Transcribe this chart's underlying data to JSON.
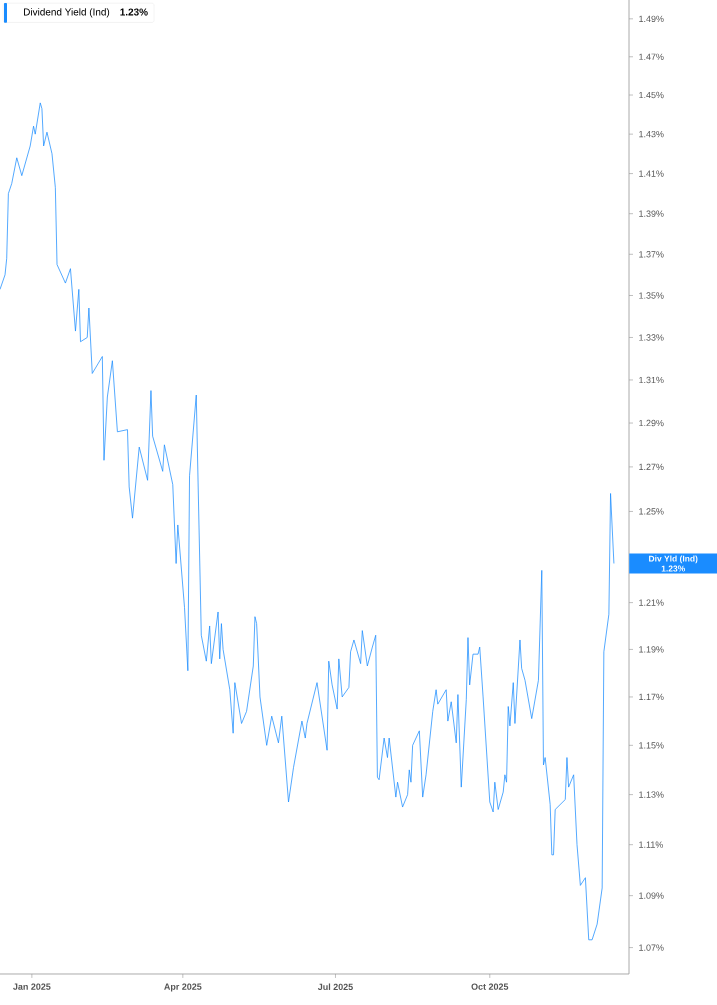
{
  "chart_data": {
    "type": "line",
    "log": "y",
    "legend": "top left",
    "marker": "none",
    "line_style": "solid",
    "xlim": [
      "2024-12-13",
      "2025-12-23"
    ],
    "ylim": [
      1.06,
      1.5
    ],
    "xticks": [
      {
        "value": "2025-01-01",
        "label": "Jan 2025"
      },
      {
        "value": "2025-04-01",
        "label": "Apr 2025"
      },
      {
        "value": "2025-07-01",
        "label": "Jul 2025"
      },
      {
        "value": "2025-10-01",
        "label": "Oct 2025"
      }
    ],
    "yticks": [
      {
        "value": 1.07,
        "label": "1.07%"
      },
      {
        "value": 1.09,
        "label": "1.09%"
      },
      {
        "value": 1.11,
        "label": "1.11%"
      },
      {
        "value": 1.13,
        "label": "1.13%"
      },
      {
        "value": 1.15,
        "label": "1.15%"
      },
      {
        "value": 1.17,
        "label": "1.17%"
      },
      {
        "value": 1.19,
        "label": "1.19%"
      },
      {
        "value": 1.21,
        "label": "1.21%"
      },
      {
        "value": 1.25,
        "label": "1.25%"
      },
      {
        "value": 1.27,
        "label": "1.27%"
      },
      {
        "value": 1.29,
        "label": "1.29%"
      },
      {
        "value": 1.31,
        "label": "1.31%"
      },
      {
        "value": 1.33,
        "label": "1.33%"
      },
      {
        "value": 1.35,
        "label": "1.35%"
      },
      {
        "value": 1.37,
        "label": "1.37%"
      },
      {
        "value": 1.39,
        "label": "1.39%"
      },
      {
        "value": 1.41,
        "label": "1.41%"
      },
      {
        "value": 1.43,
        "label": "1.43%"
      },
      {
        "value": 1.45,
        "label": "1.45%"
      },
      {
        "value": 1.47,
        "label": "1.47%"
      },
      {
        "value": 1.49,
        "label": "1.49%"
      }
    ],
    "annotations": [
      "Div Yld (Ind)",
      "1.23%",
      "1.23%"
    ],
    "series": [
      {
        "name": "Dividend Yield (Ind)",
        "color": "#1a8cff",
        "x": [
          "2024-12-13",
          "2024-12-16",
          "2024-12-17",
          "2024-12-18",
          "2024-12-20",
          "2024-12-23",
          "2024-12-26",
          "2024-12-31",
          "2025-01-02",
          "2025-01-03",
          "2025-01-06",
          "2025-01-07",
          "2025-01-08",
          "2025-01-10",
          "2025-01-13",
          "2025-01-15",
          "2025-01-16",
          "2025-01-21",
          "2025-01-24",
          "2025-01-27",
          "2025-01-29",
          "2025-01-30",
          "2025-02-03",
          "2025-02-04",
          "2025-02-06",
          "2025-02-12",
          "2025-02-13",
          "2025-02-15",
          "2025-02-18",
          "2025-02-21",
          "2025-02-27",
          "2025-02-28",
          "2025-03-02",
          "2025-03-06",
          "2025-03-11",
          "2025-03-13",
          "2025-03-14",
          "2025-03-20",
          "2025-03-21",
          "2025-03-26",
          "2025-03-28",
          "2025-03-29",
          "2025-04-02",
          "2025-04-04",
          "2025-04-05",
          "2025-04-09",
          "2025-04-12",
          "2025-04-15",
          "2025-04-17",
          "2025-04-18",
          "2025-04-22",
          "2025-04-23",
          "2025-04-24",
          "2025-04-25",
          "2025-04-29",
          "2025-05-01",
          "2025-05-02",
          "2025-05-06",
          "2025-05-09",
          "2025-05-13",
          "2025-05-14",
          "2025-05-15",
          "2025-05-17",
          "2025-05-21",
          "2025-05-24",
          "2025-05-28",
          "2025-05-30",
          "2025-06-03",
          "2025-06-06",
          "2025-06-11",
          "2025-06-13",
          "2025-06-14",
          "2025-06-20",
          "2025-06-26",
          "2025-06-27",
          "2025-06-29",
          "2025-07-02",
          "2025-07-03",
          "2025-07-05",
          "2025-07-09",
          "2025-07-10",
          "2025-07-12",
          "2025-07-16",
          "2025-07-17",
          "2025-07-20",
          "2025-07-23",
          "2025-07-25",
          "2025-07-26",
          "2025-07-27",
          "2025-07-30",
          "2025-08-01",
          "2025-08-02",
          "2025-08-06",
          "2025-08-07",
          "2025-08-10",
          "2025-08-13",
          "2025-08-14",
          "2025-08-15",
          "2025-08-16",
          "2025-08-20",
          "2025-08-22",
          "2025-08-24",
          "2025-08-28",
          "2025-08-30",
          "2025-08-31",
          "2025-09-05",
          "2025-09-06",
          "2025-09-08",
          "2025-09-11",
          "2025-09-12",
          "2025-09-14",
          "2025-09-17",
          "2025-09-18",
          "2025-09-19",
          "2025-09-21",
          "2025-09-24",
          "2025-09-25",
          "2025-09-27",
          "2025-10-01",
          "2025-10-03",
          "2025-10-04",
          "2025-10-06",
          "2025-10-09",
          "2025-10-10",
          "2025-10-11",
          "2025-10-12",
          "2025-10-13",
          "2025-10-15",
          "2025-10-16",
          "2025-10-19",
          "2025-10-20",
          "2025-10-22",
          "2025-10-26",
          "2025-10-30",
          "2025-11-01",
          "2025-11-02",
          "2025-11-03",
          "2025-11-06",
          "2025-11-07",
          "2025-11-08",
          "2025-11-09",
          "2025-11-15",
          "2025-11-16",
          "2025-11-17",
          "2025-11-20",
          "2025-11-22",
          "2025-11-24",
          "2025-11-27",
          "2025-11-29",
          "2025-12-01",
          "2025-12-04",
          "2025-12-07",
          "2025-12-08",
          "2025-12-11",
          "2025-12-12",
          "2025-12-14"
        ],
        "values": [
          1.353,
          1.36,
          1.368,
          1.4,
          1.405,
          1.418,
          1.409,
          1.424,
          1.434,
          1.43,
          1.446,
          1.443,
          1.424,
          1.431,
          1.42,
          1.403,
          1.365,
          1.356,
          1.363,
          1.333,
          1.353,
          1.328,
          1.33,
          1.344,
          1.313,
          1.321,
          1.273,
          1.302,
          1.319,
          1.286,
          1.287,
          1.261,
          1.247,
          1.279,
          1.264,
          1.305,
          1.284,
          1.268,
          1.28,
          1.262,
          1.227,
          1.244,
          1.208,
          1.181,
          1.266,
          1.303,
          1.196,
          1.185,
          1.2,
          1.184,
          1.206,
          1.186,
          1.201,
          1.19,
          1.173,
          1.155,
          1.176,
          1.159,
          1.164,
          1.183,
          1.204,
          1.201,
          1.17,
          1.15,
          1.162,
          1.151,
          1.162,
          1.127,
          1.141,
          1.16,
          1.153,
          1.159,
          1.176,
          1.148,
          1.185,
          1.175,
          1.165,
          1.186,
          1.17,
          1.174,
          1.189,
          1.194,
          1.184,
          1.198,
          1.183,
          1.191,
          1.196,
          1.137,
          1.136,
          1.153,
          1.145,
          1.153,
          1.129,
          1.135,
          1.125,
          1.13,
          1.14,
          1.135,
          1.15,
          1.156,
          1.129,
          1.138,
          1.164,
          1.173,
          1.167,
          1.173,
          1.16,
          1.168,
          1.151,
          1.171,
          1.133,
          1.169,
          1.195,
          1.175,
          1.188,
          1.188,
          1.191,
          1.17,
          1.127,
          1.123,
          1.135,
          1.124,
          1.131,
          1.138,
          1.135,
          1.166,
          1.158,
          1.176,
          1.159,
          1.194,
          1.182,
          1.177,
          1.161,
          1.177,
          1.224,
          1.142,
          1.145,
          1.126,
          1.106,
          1.106,
          1.124,
          1.128,
          1.145,
          1.133,
          1.138,
          1.11,
          1.094,
          1.097,
          1.073,
          1.073,
          1.079,
          1.093,
          1.189,
          1.205,
          1.258,
          1.227
        ]
      }
    ]
  }
}
